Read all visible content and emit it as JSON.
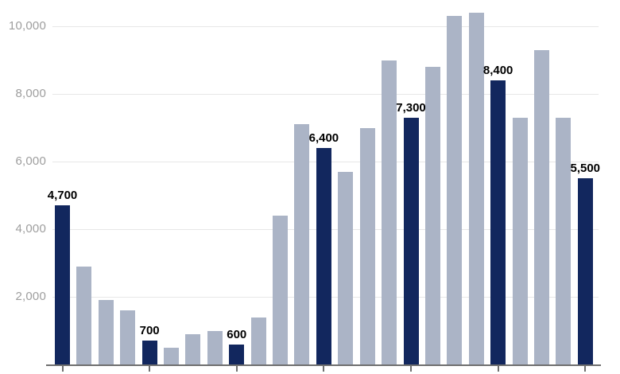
{
  "chart_data": {
    "type": "bar",
    "title": "",
    "xlabel": "",
    "ylabel": "",
    "ylim": [
      0,
      10500
    ],
    "grid": "horizontal-only",
    "legend": "none",
    "x_axis_labels": "none (tick marks only, under every highlighted bar)",
    "yticks": [
      {
        "value": 2000,
        "label": "2,000"
      },
      {
        "value": 4000,
        "label": "4,000"
      },
      {
        "value": 6000,
        "label": "6,000"
      },
      {
        "value": 8000,
        "label": "8,000"
      },
      {
        "value": 10000,
        "label": "10,000"
      }
    ],
    "bars": [
      {
        "value": 4700,
        "highlighted": true,
        "data_label": "4,700"
      },
      {
        "value": 2900,
        "highlighted": false,
        "data_label": ""
      },
      {
        "value": 1900,
        "highlighted": false,
        "data_label": ""
      },
      {
        "value": 1600,
        "highlighted": false,
        "data_label": ""
      },
      {
        "value": 700,
        "highlighted": true,
        "data_label": "700"
      },
      {
        "value": 500,
        "highlighted": false,
        "data_label": ""
      },
      {
        "value": 900,
        "highlighted": false,
        "data_label": ""
      },
      {
        "value": 1000,
        "highlighted": false,
        "data_label": ""
      },
      {
        "value": 600,
        "highlighted": true,
        "data_label": "600"
      },
      {
        "value": 1400,
        "highlighted": false,
        "data_label": ""
      },
      {
        "value": 4400,
        "highlighted": false,
        "data_label": ""
      },
      {
        "value": 7100,
        "highlighted": false,
        "data_label": ""
      },
      {
        "value": 6400,
        "highlighted": true,
        "data_label": "6,400"
      },
      {
        "value": 5700,
        "highlighted": false,
        "data_label": ""
      },
      {
        "value": 7000,
        "highlighted": false,
        "data_label": ""
      },
      {
        "value": 9000,
        "highlighted": false,
        "data_label": ""
      },
      {
        "value": 7300,
        "highlighted": true,
        "data_label": "7,300"
      },
      {
        "value": 8800,
        "highlighted": false,
        "data_label": ""
      },
      {
        "value": 10300,
        "highlighted": false,
        "data_label": ""
      },
      {
        "value": 10400,
        "highlighted": false,
        "data_label": ""
      },
      {
        "value": 8400,
        "highlighted": true,
        "data_label": "8,400"
      },
      {
        "value": 7300,
        "highlighted": false,
        "data_label": ""
      },
      {
        "value": 9300,
        "highlighted": false,
        "data_label": ""
      },
      {
        "value": 7300,
        "highlighted": false,
        "data_label": ""
      },
      {
        "value": 5500,
        "highlighted": true,
        "data_label": "5,500"
      }
    ],
    "colors": {
      "bar_highlight": "#12275e",
      "bar_default": "#abb4c6",
      "gridline": "#e7e7e7",
      "axis_line": "#6f6f6f",
      "axis_tick_label": "#9e9e9e",
      "data_label": "#000000"
    }
  }
}
